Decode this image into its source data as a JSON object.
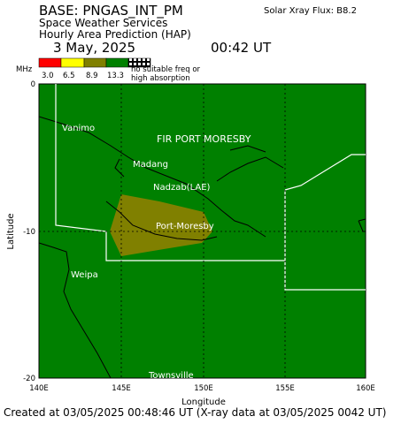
{
  "header": {
    "base": "BASE: PNGAS_INT_PM",
    "org": "Space Weather Services",
    "product": "Hourly Area Prediction (HAP)",
    "date": "3 May, 2025",
    "time": "00:42 UT",
    "xray": "Solar Xray Flux: B8.2"
  },
  "legend": {
    "unit": "MHz",
    "labels": [
      "3.0",
      "6.5",
      "8.9",
      "13.3"
    ],
    "note": [
      "no suitable freq or",
      "high absorption"
    ]
  },
  "map": {
    "y_axis": {
      "title": "Latitude",
      "ticks": [
        "0",
        "-10",
        "-20"
      ]
    },
    "x_axis": {
      "title": "Longitude",
      "ticks": [
        "140E",
        "145E",
        "150E",
        "155E",
        "160E"
      ]
    },
    "places": [
      "Vanimo",
      "FIR PORT MORESBY",
      "Madang",
      "Nadzab(LAE)",
      "Port-Moresby",
      "Weipa",
      "Townsville"
    ]
  },
  "footer": "Created at 03/05/2025 00:48:46 UT (X-ray data at 03/05/2025 0042 UT)"
}
